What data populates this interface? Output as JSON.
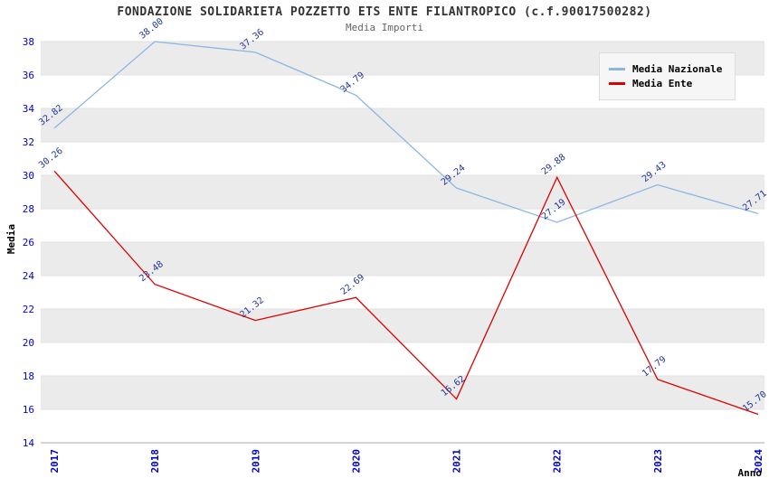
{
  "chart": {
    "title": "FONDAZIONE SOLIDARIETA POZZETTO ETS ENTE FILANTROPICO (c.f.90017500282)",
    "subtitle": "Media Importi",
    "ylabel": "Media",
    "xlabel": "Anno",
    "colors": {
      "tick_label": "#0000cc",
      "point_label": "#223399",
      "band": "#ebebeb",
      "grid": "#e1e1e1",
      "axis": "#aaaaaa",
      "title": "#333333",
      "subtitle": "#666666"
    }
  },
  "chart_data": {
    "type": "line",
    "title": "FONDAZIONE SOLIDARIETA POZZETTO ETS ENTE FILANTROPICO (c.f.90017500282)",
    "subtitle": "Media Importi",
    "xlabel": "Anno",
    "ylabel": "Media",
    "x": [
      2017,
      2018,
      2019,
      2020,
      2021,
      2022,
      2023,
      2024
    ],
    "series": [
      {
        "name": "Media Nazionale",
        "color": "#8ab6e4",
        "values": [
          32.82,
          38.0,
          37.36,
          34.79,
          29.24,
          27.19,
          29.43,
          27.71
        ]
      },
      {
        "name": "Media Ente",
        "color": "#dd0000",
        "values": [
          30.26,
          23.48,
          21.32,
          22.69,
          16.62,
          29.88,
          17.79,
          15.7
        ]
      }
    ],
    "ylim": [
      14,
      38
    ],
    "yticks": [
      14,
      16,
      18,
      20,
      22,
      24,
      26,
      28,
      30,
      32,
      34,
      36,
      38
    ],
    "grid": true,
    "banded_background": true,
    "legend_position": "top-right",
    "point_label_decimals": 2
  }
}
